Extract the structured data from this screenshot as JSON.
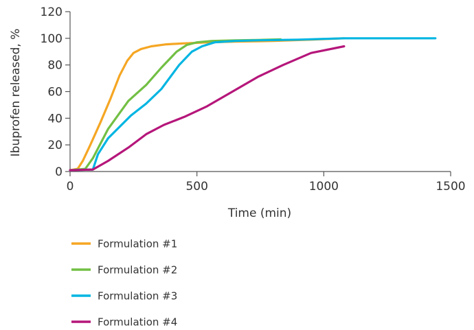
{
  "chart_data": {
    "type": "line",
    "title": "",
    "xlabel": "Time (min)",
    "ylabel": "Ibuprofen released, %",
    "xlim": [
      0,
      1500
    ],
    "ylim": [
      0,
      120
    ],
    "xticks": [
      0,
      500,
      1000,
      1500
    ],
    "yticks": [
      0,
      20,
      40,
      60,
      80,
      100,
      120
    ],
    "grid": false,
    "legend_position": "bottom",
    "series": [
      {
        "name": "Formulation #1",
        "color": "#f5a623",
        "points": [
          [
            0,
            1
          ],
          [
            30,
            2
          ],
          [
            50,
            8
          ],
          [
            80,
            20
          ],
          [
            120,
            37
          ],
          [
            160,
            55
          ],
          [
            195,
            72
          ],
          [
            225,
            83
          ],
          [
            250,
            89
          ],
          [
            280,
            92
          ],
          [
            320,
            94
          ],
          [
            380,
            95.5
          ],
          [
            450,
            96.2
          ],
          [
            550,
            97
          ],
          [
            650,
            97.5
          ],
          [
            800,
            98
          ],
          [
            950,
            99
          ],
          [
            1080,
            100
          ]
        ]
      },
      {
        "name": "Formulation #2",
        "color": "#72bf44",
        "points": [
          [
            0,
            1
          ],
          [
            60,
            2
          ],
          [
            90,
            10
          ],
          [
            150,
            32
          ],
          [
            230,
            53
          ],
          [
            300,
            65
          ],
          [
            360,
            78
          ],
          [
            420,
            90
          ],
          [
            460,
            95
          ],
          [
            500,
            97
          ],
          [
            560,
            98
          ],
          [
            650,
            98.4
          ],
          [
            750,
            98.8
          ],
          [
            830,
            99.2
          ]
        ]
      },
      {
        "name": "Formulation #3",
        "color": "#00b5e2",
        "points": [
          [
            0,
            1
          ],
          [
            90,
            1.5
          ],
          [
            110,
            13
          ],
          [
            150,
            25
          ],
          [
            240,
            42
          ],
          [
            300,
            51
          ],
          [
            360,
            62
          ],
          [
            430,
            80
          ],
          [
            480,
            90
          ],
          [
            520,
            94
          ],
          [
            570,
            97
          ],
          [
            650,
            98
          ],
          [
            750,
            98.5
          ],
          [
            900,
            99
          ],
          [
            1080,
            100
          ],
          [
            1200,
            100
          ],
          [
            1300,
            100
          ],
          [
            1440,
            100
          ]
        ]
      },
      {
        "name": "Formulation #4",
        "color": "#b5167a",
        "points": [
          [
            0,
            1
          ],
          [
            90,
            1.5
          ],
          [
            150,
            8
          ],
          [
            230,
            18
          ],
          [
            300,
            28
          ],
          [
            370,
            35
          ],
          [
            450,
            41
          ],
          [
            540,
            49
          ],
          [
            640,
            60
          ],
          [
            740,
            71
          ],
          [
            840,
            80
          ],
          [
            950,
            89
          ],
          [
            1080,
            94
          ]
        ]
      }
    ]
  }
}
